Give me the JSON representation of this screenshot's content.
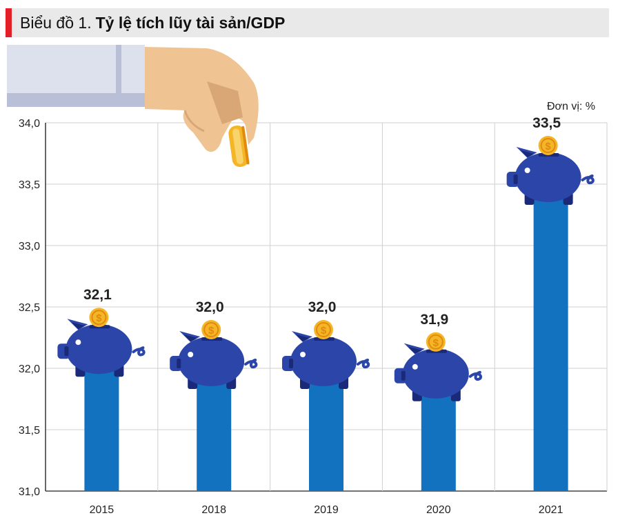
{
  "header": {
    "prefix": "Biểu đồ 1.",
    "title": "Tỷ lệ tích lũy tài sản/GDP"
  },
  "unit_label": "Đơn vị: %",
  "colors": {
    "accent": "#e3202a",
    "bar": "#1272c0",
    "pig_body": "#2b46a8",
    "pig_dark": "#1b2a78",
    "coin": "#f4b526",
    "grid": "#cfcfcf"
  },
  "icons": [
    "hand-icon",
    "coin-icon",
    "piggy-bank-icon"
  ],
  "chart_data": {
    "type": "bar",
    "title": "Tỷ lệ tích lũy tài sản/GDP",
    "unit": "%",
    "categories": [
      "2015",
      "2018",
      "2019",
      "2020",
      "2021"
    ],
    "values": [
      32.1,
      32.0,
      32.0,
      31.9,
      33.5
    ],
    "value_labels": [
      "32,1",
      "32,0",
      "32,0",
      "31,9",
      "33,5"
    ],
    "ylim": [
      31.0,
      34.0
    ],
    "yticks": [
      31.0,
      31.5,
      32.0,
      32.5,
      33.0,
      33.5,
      34.0
    ],
    "ytick_labels": [
      "31,0",
      "31,5",
      "32,0",
      "32,5",
      "33,0",
      "33,5",
      "34,0"
    ],
    "grid": true,
    "xlabel": "",
    "ylabel": ""
  }
}
